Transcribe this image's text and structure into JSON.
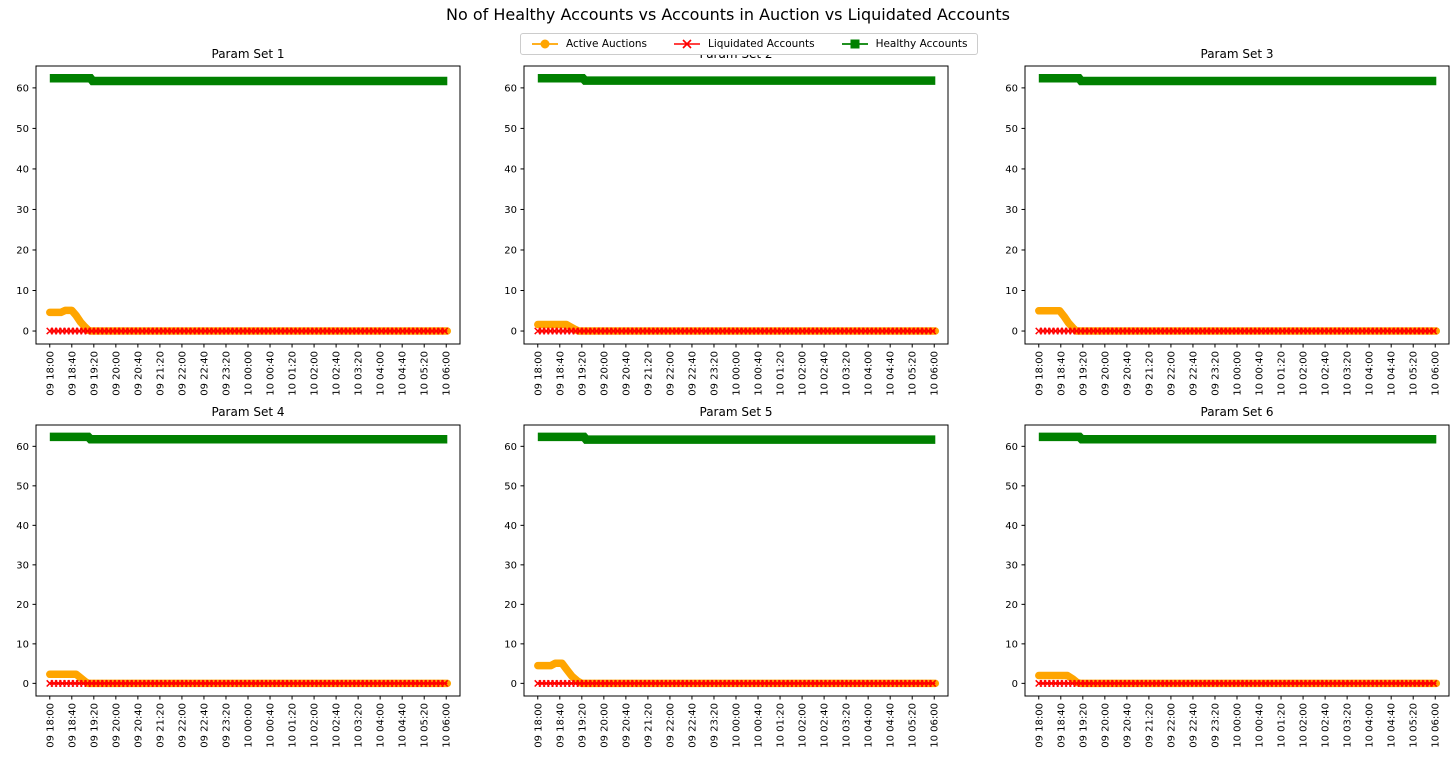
{
  "title": "No of Healthy Accounts vs Accounts in Auction vs Liquidated Accounts",
  "legend": {
    "items": [
      {
        "label": "Active Auctions",
        "color": "#FFA500",
        "marker": "circle"
      },
      {
        "label": "Liquidated Accounts",
        "color": "#FF0000",
        "marker": "x"
      },
      {
        "label": "Healthy Accounts",
        "color": "#008000",
        "marker": "square"
      }
    ]
  },
  "chart_data": {
    "type": "line",
    "suptitle": "No of Healthy Accounts vs Accounts in Auction vs Liquidated Accounts",
    "grid": false,
    "legend_position": "top-center",
    "y_ticks": [
      0,
      10,
      20,
      30,
      40,
      50,
      60
    ],
    "ylim": [
      -3.2,
      65.4
    ],
    "x_tick_step_minutes": 40,
    "xlim_minutes": [
      -25,
      745
    ],
    "x_ticklabels": [
      "09 18:00",
      "09 18:40",
      "09 19:20",
      "09 20:00",
      "09 20:40",
      "09 21:20",
      "09 22:00",
      "09 22:40",
      "09 23:20",
      "10 00:00",
      "10 00:40",
      "10 01:20",
      "10 02:00",
      "10 02:40",
      "10 03:20",
      "10 04:00",
      "10 04:40",
      "10 05:20",
      "10 06:00"
    ],
    "charts": [
      {
        "title": "Param Set 1",
        "series": [
          {
            "name": "Active Auctions",
            "color": "#FFA500",
            "marker": "circle",
            "points": [
              [
                0,
                4.6
              ],
              [
                20,
                4.6
              ],
              [
                28,
                5.1
              ],
              [
                40,
                5.1
              ],
              [
                48,
                3.8
              ],
              [
                56,
                2.2
              ],
              [
                64,
                1.0
              ],
              [
                70,
                0.2
              ],
              [
                74,
                0
              ],
              [
                722,
                0
              ]
            ]
          },
          {
            "name": "Liquidated Accounts",
            "color": "#FF0000",
            "marker": "x",
            "points": [
              [
                0,
                0
              ],
              [
                722,
                0
              ]
            ]
          },
          {
            "name": "Healthy Accounts",
            "color": "#008000",
            "marker": "square",
            "points": [
              [
                0,
                62.4
              ],
              [
                74,
                62.4
              ],
              [
                78,
                61.7
              ],
              [
                722,
                61.7
              ]
            ]
          }
        ]
      },
      {
        "title": "Param Set 2",
        "series": [
          {
            "name": "Active Auctions",
            "color": "#FFA500",
            "marker": "circle",
            "points": [
              [
                0,
                1.6
              ],
              [
                52,
                1.6
              ],
              [
                60,
                1.0
              ],
              [
                68,
                0.4
              ],
              [
                74,
                0
              ],
              [
                722,
                0
              ]
            ]
          },
          {
            "name": "Liquidated Accounts",
            "color": "#FF0000",
            "marker": "x",
            "points": [
              [
                0,
                0
              ],
              [
                722,
                0
              ]
            ]
          },
          {
            "name": "Healthy Accounts",
            "color": "#008000",
            "marker": "square",
            "points": [
              [
                0,
                62.4
              ],
              [
                82,
                62.4
              ],
              [
                86,
                61.8
              ],
              [
                722,
                61.8
              ]
            ]
          }
        ]
      },
      {
        "title": "Param Set 3",
        "series": [
          {
            "name": "Active Auctions",
            "color": "#FFA500",
            "marker": "circle",
            "points": [
              [
                0,
                5.0
              ],
              [
                38,
                5.0
              ],
              [
                46,
                3.6
              ],
              [
                54,
                2.0
              ],
              [
                62,
                0.8
              ],
              [
                68,
                0
              ],
              [
                722,
                0
              ]
            ]
          },
          {
            "name": "Liquidated Accounts",
            "color": "#FF0000",
            "marker": "x",
            "points": [
              [
                0,
                0
              ],
              [
                722,
                0
              ]
            ]
          },
          {
            "name": "Healthy Accounts",
            "color": "#008000",
            "marker": "square",
            "points": [
              [
                0,
                62.4
              ],
              [
                73,
                62.4
              ],
              [
                77,
                61.7
              ],
              [
                722,
                61.7
              ]
            ]
          }
        ]
      },
      {
        "title": "Param Set 4",
        "series": [
          {
            "name": "Active Auctions",
            "color": "#FFA500",
            "marker": "circle",
            "points": [
              [
                0,
                2.3
              ],
              [
                48,
                2.3
              ],
              [
                56,
                1.4
              ],
              [
                64,
                0.5
              ],
              [
                70,
                0
              ],
              [
                722,
                0
              ]
            ]
          },
          {
            "name": "Liquidated Accounts",
            "color": "#FF0000",
            "marker": "x",
            "points": [
              [
                0,
                0
              ],
              [
                722,
                0
              ]
            ]
          },
          {
            "name": "Healthy Accounts",
            "color": "#008000",
            "marker": "square",
            "points": [
              [
                0,
                62.4
              ],
              [
                70,
                62.4
              ],
              [
                74,
                61.8
              ],
              [
                722,
                61.8
              ]
            ]
          }
        ]
      },
      {
        "title": "Param Set 5",
        "series": [
          {
            "name": "Active Auctions",
            "color": "#FFA500",
            "marker": "circle",
            "points": [
              [
                0,
                4.5
              ],
              [
                24,
                4.5
              ],
              [
                32,
                5.1
              ],
              [
                44,
                5.1
              ],
              [
                52,
                3.6
              ],
              [
                62,
                1.8
              ],
              [
                72,
                0.6
              ],
              [
                80,
                0
              ],
              [
                722,
                0
              ]
            ]
          },
          {
            "name": "Liquidated Accounts",
            "color": "#FF0000",
            "marker": "x",
            "points": [
              [
                0,
                0
              ],
              [
                722,
                0
              ]
            ]
          },
          {
            "name": "Healthy Accounts",
            "color": "#008000",
            "marker": "square",
            "points": [
              [
                0,
                62.4
              ],
              [
                84,
                62.4
              ],
              [
                88,
                61.7
              ],
              [
                722,
                61.7
              ]
            ]
          }
        ]
      },
      {
        "title": "Param Set 6",
        "series": [
          {
            "name": "Active Auctions",
            "color": "#FFA500",
            "marker": "circle",
            "points": [
              [
                0,
                2.0
              ],
              [
                52,
                2.0
              ],
              [
                62,
                1.1
              ],
              [
                70,
                0.2
              ],
              [
                76,
                0
              ],
              [
                722,
                0
              ]
            ]
          },
          {
            "name": "Liquidated Accounts",
            "color": "#FF0000",
            "marker": "x",
            "points": [
              [
                0,
                0
              ],
              [
                722,
                0
              ]
            ]
          },
          {
            "name": "Healthy Accounts",
            "color": "#008000",
            "marker": "square",
            "points": [
              [
                0,
                62.4
              ],
              [
                74,
                62.4
              ],
              [
                78,
                61.8
              ],
              [
                722,
                61.8
              ]
            ]
          }
        ]
      }
    ]
  }
}
